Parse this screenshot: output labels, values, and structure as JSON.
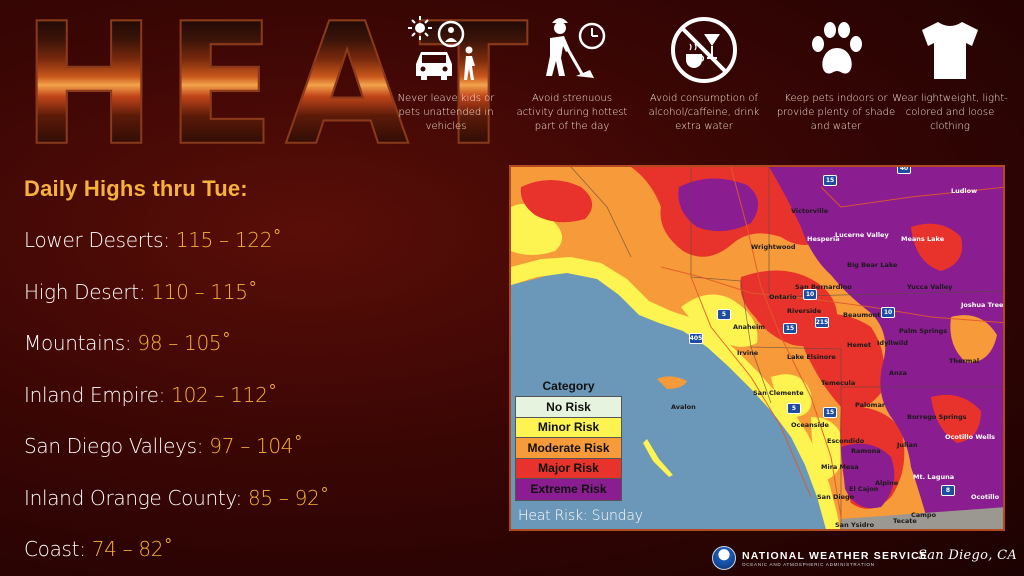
{
  "title": {
    "letters": [
      "H",
      "E",
      "A",
      "T"
    ]
  },
  "tips": [
    {
      "icon": "sun-child-car-icon",
      "text": "Never leave kids or pets unattended in vehicles"
    },
    {
      "icon": "worker-clock-icon",
      "text": "Avoid strenuous activity during hottest part of the day"
    },
    {
      "icon": "no-alcohol-caffeine-icon",
      "text": "Avoid consumption of alcohol/caffeine, drink extra water"
    },
    {
      "icon": "paw-print-icon",
      "text": "Keep pets indoors or provide plenty of shade and water"
    },
    {
      "icon": "tshirt-icon",
      "text": "Wear lightweight, light-colored and loose clothing"
    }
  ],
  "highs": {
    "heading": "Daily Highs thru Tue:",
    "rows": [
      {
        "region": "Lower Deserts: ",
        "range": "115 – 122˚"
      },
      {
        "region": "High Desert: ",
        "range": "110 – 115˚"
      },
      {
        "region": "Mountains: ",
        "range": "98 – 105˚"
      },
      {
        "region": "Inland Empire: ",
        "range": "102 – 112˚"
      },
      {
        "region": "San Diego Valleys: ",
        "range": "97 – 104˚"
      },
      {
        "region": "Inland Orange County: ",
        "range": "85 – 92˚"
      },
      {
        "region": "Coast: ",
        "range": "74 – 82˚"
      }
    ]
  },
  "map": {
    "caption": "Heat Risk: Sunday",
    "legend": {
      "title": "Category",
      "items": [
        {
          "label": "No Risk",
          "color": "#e6f3df"
        },
        {
          "label": "Minor Risk",
          "color": "#fdf351"
        },
        {
          "label": "Moderate Risk",
          "color": "#f79a39"
        },
        {
          "label": "Major Risk",
          "color": "#e8332c"
        },
        {
          "label": "Extreme Risk",
          "color": "#8a1d8f"
        }
      ]
    },
    "places": {
      "victorville": "Victorville",
      "hesperia": "Hesperia",
      "lucerne_valley": "Lucerne Valley",
      "means_lake": "Means Lake",
      "ludlow": "Ludlow",
      "wrightwood": "Wrightwood",
      "big_bear_lake": "Big Bear Lake",
      "yucca_valley": "Yucca Valley",
      "joshua_tree": "Joshua Tree N",
      "ontario": "Ontario",
      "san_bernardino": "San Bernardino",
      "riverside": "Riverside",
      "beaumont": "Beaumont",
      "palm_springs": "Palm Springs",
      "anaheim": "Anaheim",
      "irvine": "Irvine",
      "hemet": "Hemet",
      "idyllwild": "Idyllwild",
      "lake_elsinore": "Lake Elsinore",
      "thermal": "Thermal",
      "anza": "Anza",
      "temecula": "Temecula",
      "san_clemente": "San Clemente",
      "avalon": "Avalon",
      "palomar": "Palomar",
      "borrego_springs": "Borrego Springs",
      "oceanside": "Oceanside",
      "escondido": "Escondido",
      "ramona": "Ramona",
      "julian": "Julian",
      "ocotillo_wells": "Ocotillo Wells",
      "mira_mesa": "Mira Mesa",
      "alpine": "Alpine",
      "el_cajon": "El Cajon",
      "mt_laguna": "Mt. Laguna",
      "san_diego": "San Diego",
      "campo": "Campo",
      "tecate": "Tecate",
      "san_ysidro": "San Ysidro",
      "ocotillo": "Ocotillo"
    },
    "routes": [
      "15",
      "40",
      "10",
      "215",
      "5",
      "405",
      "15",
      "10",
      "5",
      "15",
      "8"
    ]
  },
  "footer": {
    "agency": "NATIONAL WEATHER SERVICE",
    "parent": "OCEANIC AND ATMOSPHERIC ADMINISTRATION",
    "office": "San Diego, CA"
  }
}
